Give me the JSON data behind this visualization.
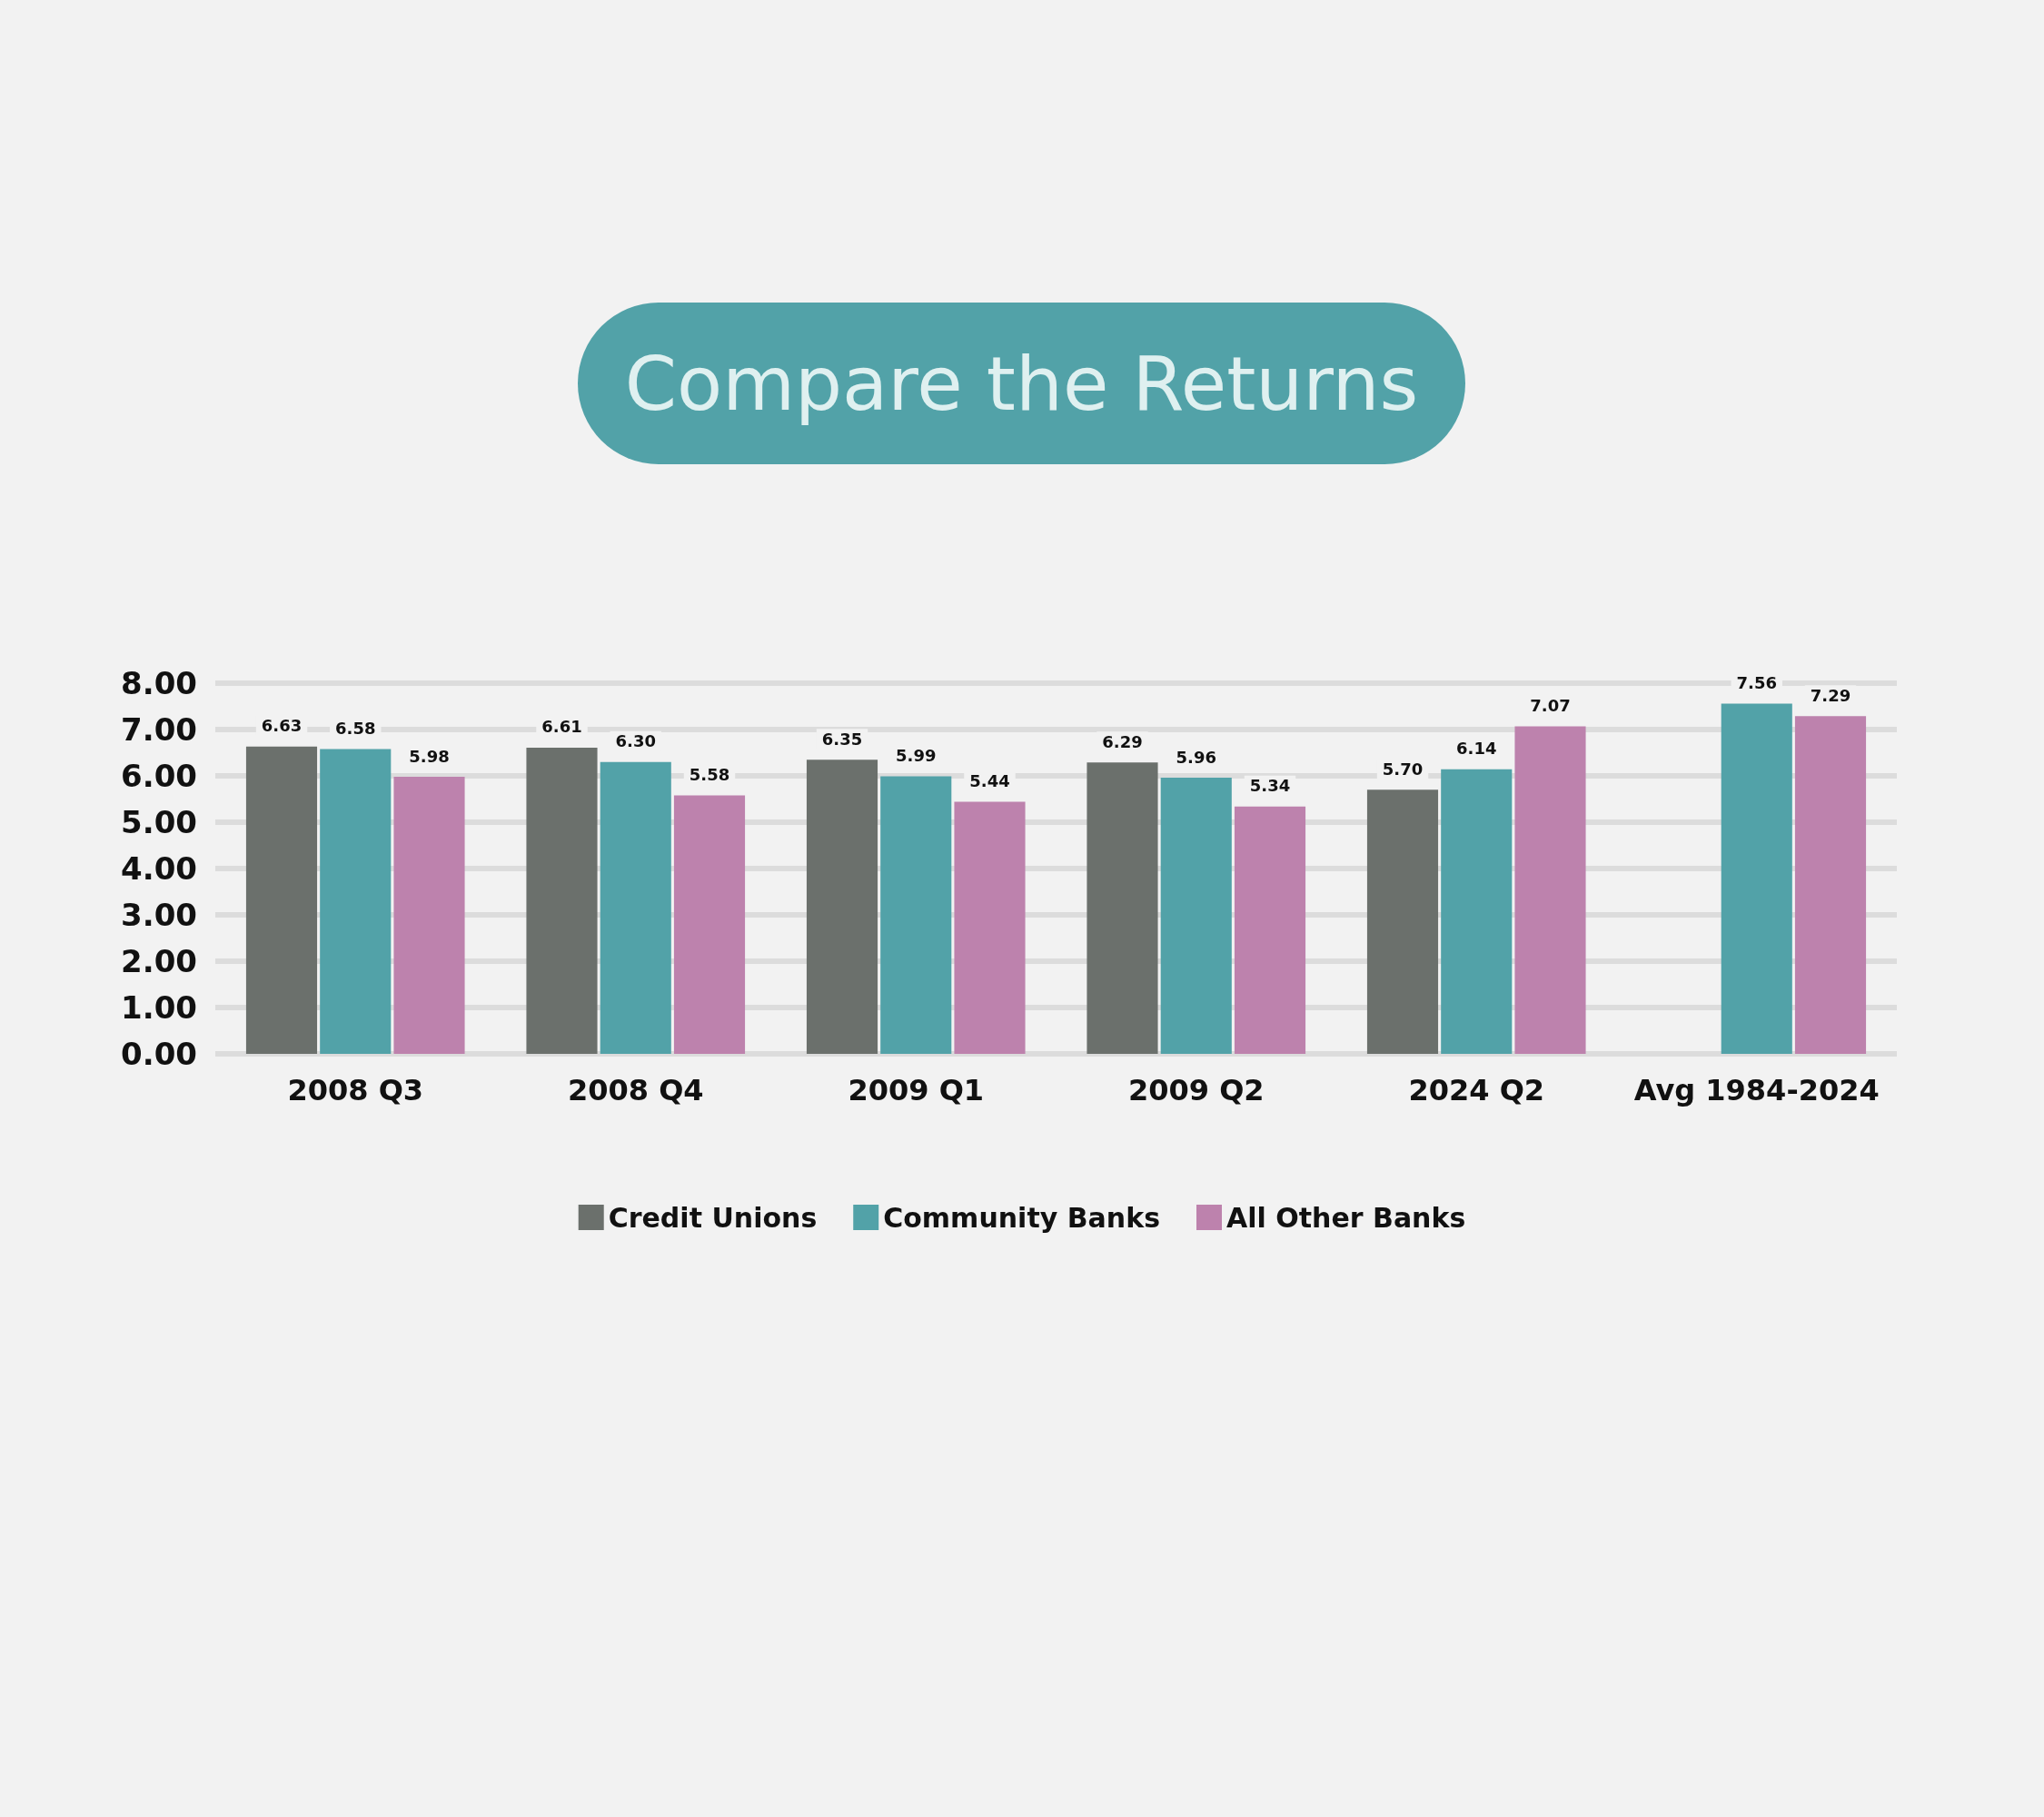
{
  "chart_data": {
    "type": "bar",
    "title": "Compare the Returns",
    "categories": [
      "2008 Q3",
      "2008 Q4",
      "2009 Q1",
      "2009 Q2",
      "2024 Q2",
      "Avg 1984-2024"
    ],
    "series": [
      {
        "name": "Credit Unions",
        "color": "#6b706c",
        "values": [
          6.63,
          6.61,
          6.35,
          6.29,
          5.7,
          null
        ],
        "value_labels": [
          "6.63",
          "6.61",
          "6.35",
          "6.29",
          "5.70",
          null
        ]
      },
      {
        "name": "Community Banks",
        "color": "#52a2a8",
        "values": [
          6.58,
          6.3,
          5.99,
          5.96,
          6.14,
          7.56
        ],
        "value_labels": [
          "6.58",
          "6.30",
          "5.99",
          "5.96",
          "6.14",
          "7.56"
        ]
      },
      {
        "name": "All Other Banks",
        "color": "#bd82ad",
        "values": [
          5.98,
          5.58,
          5.44,
          5.34,
          7.07,
          7.29
        ],
        "value_labels": [
          "5.98",
          "5.58",
          "5.44",
          "5.34",
          "7.07",
          "7.29"
        ]
      }
    ],
    "ylim": [
      0,
      8
    ],
    "yticks": [
      {
        "value": 0,
        "label": "0.00"
      },
      {
        "value": 1,
        "label": "1.00"
      },
      {
        "value": 2,
        "label": "2.00"
      },
      {
        "value": 3,
        "label": "3.00"
      },
      {
        "value": 4,
        "label": "4.00"
      },
      {
        "value": 5,
        "label": "5.00"
      },
      {
        "value": 6,
        "label": "6.00"
      },
      {
        "value": 7,
        "label": "7.00"
      },
      {
        "value": 8,
        "label": "8.00"
      }
    ],
    "grid": "y",
    "legend": "bottom"
  }
}
